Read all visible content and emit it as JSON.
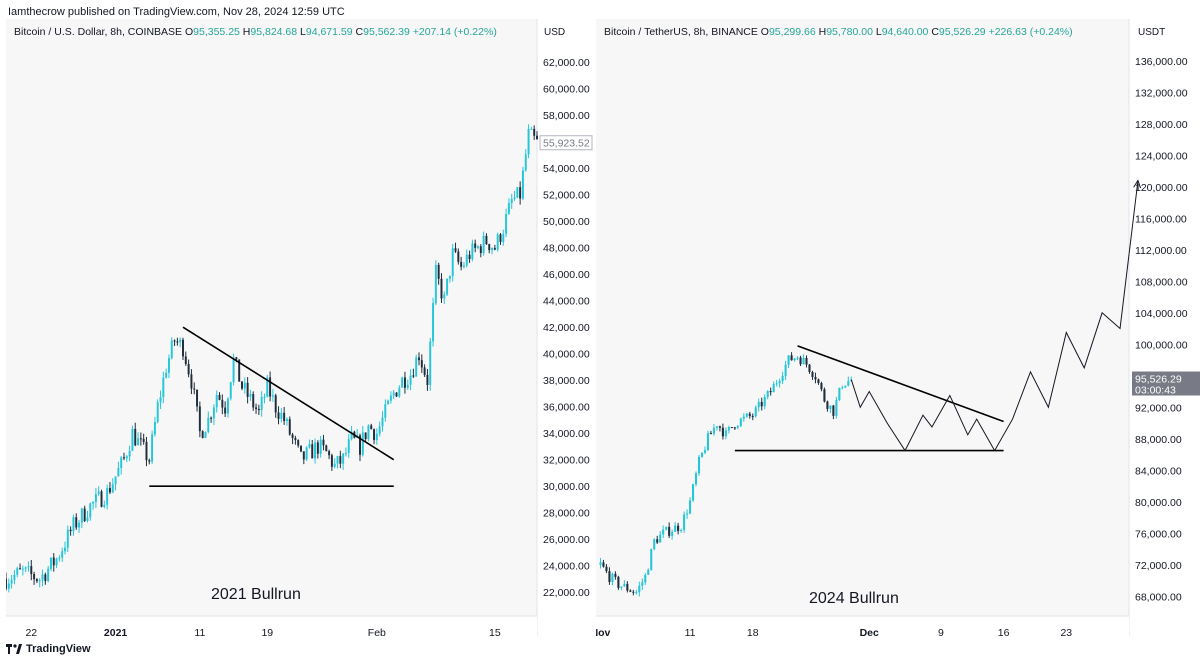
{
  "header": {
    "text": "Iamthecrow published on TradingView.com, Nov 28, 2024 12:59 UTC"
  },
  "footer": {
    "brand": "TradingView"
  },
  "colors": {
    "up": "#26c6da",
    "down": "#1f2d3d",
    "panel_bg": "#f7f7f7"
  },
  "left": {
    "symbol": "Bitcoin / U.S. Dollar, 8h, COINBASE",
    "ohlc": {
      "o_label": "O",
      "o": "95,355.25",
      "h_label": "H",
      "h": "95,824.68",
      "l_label": "L",
      "l": "94,671.59",
      "c_label": "C",
      "c": "95,562.39",
      "chg": "+207.14 (+0.22%)"
    },
    "unit": "USD",
    "annotation": "2021 Bullrun",
    "current_price": "55,923.52"
  },
  "right": {
    "symbol": "Bitcoin / TetherUS, 8h, BINANCE",
    "ohlc": {
      "o_label": "O",
      "o": "95,299.66",
      "h_label": "H",
      "h": "95,780.00",
      "l_label": "L",
      "l": "94,640.00",
      "c_label": "C",
      "c": "95,526.29",
      "chg": "+226.63 (+0.24%)"
    },
    "unit": "USDT",
    "annotation": "2024 Bullrun",
    "current_price": "95,526.29",
    "countdown": "03:00:43"
  },
  "chart_data": [
    {
      "type": "candlestick",
      "title": "Bitcoin / U.S. Dollar, 8h, COINBASE",
      "ylim": [
        20500,
        63000
      ],
      "yticks": [
        "62,000.00",
        "60,000.00",
        "58,000.00",
        "56,000.00",
        "54,000.00",
        "52,000.00",
        "50,000.00",
        "48,000.00",
        "46,000.00",
        "44,000.00",
        "42,000.00",
        "40,000.00",
        "38,000.00",
        "36,000.00",
        "34,000.00",
        "32,000.00",
        "30,000.00",
        "28,000.00",
        "26,000.00",
        "24,000.00",
        "22,000.00"
      ],
      "ytick_values": [
        62000,
        60000,
        58000,
        56000,
        54000,
        52000,
        50000,
        48000,
        46000,
        44000,
        42000,
        40000,
        38000,
        36000,
        34000,
        32000,
        30000,
        28000,
        26000,
        24000,
        22000
      ],
      "xticks": [
        {
          "label": "22",
          "day": -10,
          "bold": false
        },
        {
          "label": "2021",
          "day": 0,
          "bold": true
        },
        {
          "label": "11",
          "day": 10,
          "bold": false
        },
        {
          "label": "19",
          "day": 18,
          "bold": false
        },
        {
          "label": "Feb",
          "day": 31,
          "bold": false
        },
        {
          "label": "15",
          "day": 45,
          "bold": false
        }
      ],
      "xrange_days": [
        -13,
        50
      ],
      "path": [
        [
          -13,
          23000
        ],
        [
          -11,
          23500
        ],
        [
          -9,
          23000
        ],
        [
          -7,
          24500
        ],
        [
          -5,
          27000
        ],
        [
          -3,
          28500
        ],
        [
          -1,
          29500
        ],
        [
          1,
          32000
        ],
        [
          2,
          34000
        ],
        [
          3,
          33000
        ],
        [
          4,
          32000
        ],
        [
          5,
          36000
        ],
        [
          6,
          39000
        ],
        [
          7,
          41000
        ],
        [
          8,
          40500
        ],
        [
          9,
          38000
        ],
        [
          10,
          34000
        ],
        [
          11,
          35000
        ],
        [
          12,
          37000
        ],
        [
          13,
          36000
        ],
        [
          14,
          39500
        ],
        [
          15,
          37500
        ],
        [
          16,
          36500
        ],
        [
          17,
          35500
        ],
        [
          18,
          37500
        ],
        [
          19,
          36000
        ],
        [
          20,
          35000
        ],
        [
          21,
          33500
        ],
        [
          22,
          32000
        ],
        [
          23,
          32500
        ],
        [
          24,
          33000
        ],
        [
          25,
          32500
        ],
        [
          26,
          31500
        ],
        [
          27,
          32000
        ],
        [
          28,
          33500
        ],
        [
          29,
          33000
        ],
        [
          30,
          34500
        ],
        [
          31,
          34000
        ],
        [
          32,
          35500
        ],
        [
          33,
          37000
        ],
        [
          34,
          38000
        ],
        [
          35,
          38500
        ],
        [
          36,
          40000
        ],
        [
          37,
          38000
        ],
        [
          38,
          46000
        ],
        [
          39,
          44000
        ],
        [
          40,
          47500
        ],
        [
          41,
          46500
        ],
        [
          42,
          47500
        ],
        [
          43,
          48000
        ],
        [
          44,
          48500
        ],
        [
          45,
          48000
        ],
        [
          46,
          49500
        ],
        [
          47,
          51500
        ],
        [
          48,
          52000
        ],
        [
          49,
          56500
        ],
        [
          50,
          55900
        ]
      ],
      "trendlines": [
        {
          "type": "line",
          "points": [
            [
              8,
              42000
            ],
            [
              33,
              32000
            ]
          ]
        },
        {
          "type": "line",
          "points": [
            [
              4,
              30000
            ],
            [
              33,
              30000
            ]
          ]
        }
      ]
    },
    {
      "type": "candlestick",
      "title": "Bitcoin / TetherUS, 8h, BINANCE",
      "ylim": [
        66000,
        137500
      ],
      "yticks": [
        "136,000.00",
        "132,000.00",
        "128,000.00",
        "124,000.00",
        "120,000.00",
        "116,000.00",
        "112,000.00",
        "108,000.00",
        "104,000.00",
        "100,000.00",
        "96,000.00",
        "92,000.00",
        "88,000.00",
        "84,000.00",
        "80,000.00",
        "76,000.00",
        "72,000.00",
        "68,000.00"
      ],
      "ytick_values": [
        136000,
        132000,
        128000,
        124000,
        120000,
        116000,
        112000,
        108000,
        104000,
        100000,
        96000,
        92000,
        88000,
        84000,
        80000,
        76000,
        72000,
        68000
      ],
      "xticks": [
        {
          "label": "Nov",
          "day": 0,
          "bold": true
        },
        {
          "label": "11",
          "day": 10,
          "bold": false
        },
        {
          "label": "18",
          "day": 17,
          "bold": false
        },
        {
          "label": "Dec",
          "day": 30,
          "bold": true
        },
        {
          "label": "9",
          "day": 38,
          "bold": false
        },
        {
          "label": "16",
          "day": 45,
          "bold": false
        },
        {
          "label": "23",
          "day": 52,
          "bold": false
        }
      ],
      "xrange_days": [
        -0.5,
        59
      ],
      "path": [
        [
          0,
          72000
        ],
        [
          1,
          70500
        ],
        [
          2,
          69500
        ],
        [
          3,
          69000
        ],
        [
          4,
          68500
        ],
        [
          5,
          70500
        ],
        [
          6,
          75000
        ],
        [
          7,
          76000
        ],
        [
          8,
          76500
        ],
        [
          9,
          77000
        ],
        [
          10,
          80000
        ],
        [
          11,
          85000
        ],
        [
          12,
          88000
        ],
        [
          13,
          90000
        ],
        [
          14,
          88500
        ],
        [
          15,
          90000
        ],
        [
          16,
          90500
        ],
        [
          17,
          91000
        ],
        [
          18,
          92500
        ],
        [
          19,
          94000
        ],
        [
          20,
          96000
        ],
        [
          21,
          98000
        ],
        [
          22,
          98500
        ],
        [
          23,
          97500
        ],
        [
          24,
          96000
        ],
        [
          25,
          93000
        ],
        [
          26,
          91500
        ],
        [
          27,
          95000
        ],
        [
          28,
          95500
        ]
      ],
      "projection": [
        [
          28,
          95500
        ],
        [
          29,
          92000
        ],
        [
          30,
          94000
        ],
        [
          32,
          90000
        ],
        [
          34,
          86500
        ],
        [
          36,
          91000
        ],
        [
          37,
          89500
        ],
        [
          39,
          93500
        ],
        [
          41,
          88500
        ],
        [
          42,
          90500
        ],
        [
          44,
          86500
        ],
        [
          46,
          90500
        ],
        [
          48,
          96500
        ],
        [
          50,
          92000
        ],
        [
          52,
          101500
        ],
        [
          54,
          97000
        ],
        [
          56,
          104000
        ],
        [
          58,
          102000
        ],
        [
          60,
          120800
        ]
      ],
      "trendlines": [
        {
          "type": "line",
          "points": [
            [
              22,
              99800
            ],
            [
              45,
              90200
            ]
          ]
        },
        {
          "type": "line",
          "points": [
            [
              15,
              86500
            ],
            [
              45,
              86500
            ]
          ]
        }
      ]
    }
  ]
}
